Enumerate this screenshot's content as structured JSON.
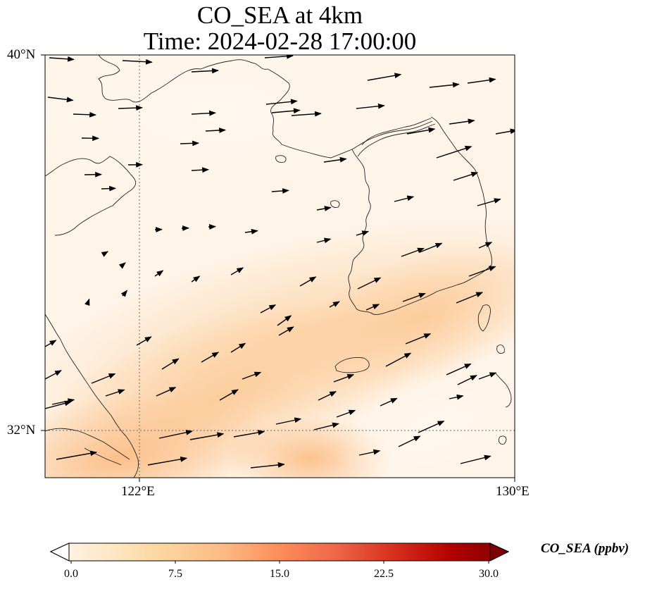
{
  "title_line1": "CO_SEA at 4km",
  "title_line2": "Time: 2024-02-28 17:00:00",
  "axes": {
    "lon_ticks": [
      {
        "value": 122,
        "label": "122°E"
      },
      {
        "value": 130,
        "label": "130°E"
      }
    ],
    "lat_ticks": [
      {
        "value": 40,
        "label": "40°N"
      },
      {
        "value": 32,
        "label": "32°N"
      }
    ],
    "lon_range": [
      120,
      130
    ],
    "lat_range": [
      31,
      40
    ],
    "gridlines": "dotted at 122°E and 32°N"
  },
  "colorbar": {
    "label": "CO_SEA (ppbv)",
    "ticks": [
      "0.0",
      "7.5",
      "15.0",
      "22.5",
      "30.0"
    ],
    "range": [
      0,
      30
    ],
    "colormap": "OrRd",
    "colors": [
      "#fff7ec",
      "#fee8c8",
      "#fdd49e",
      "#fdbb84",
      "#fc8d59",
      "#ef6548",
      "#d7301f",
      "#b30000",
      "#7f0000"
    ],
    "extend": "both"
  },
  "chart_data": {
    "type": "heatmap",
    "variable": "CO_SEA",
    "units": "ppbv",
    "observed_range": [
      0,
      9
    ],
    "field_description_values": {
      "north_area_lat_36_40": 1.0,
      "central_yellow_sea_band_lat_33_34": 4.5,
      "southwest_corner_lat_31_32": 6.5
    },
    "wind_vectors": "predominantly westerly to west-southwesterly, arrows pointing east/northeast"
  }
}
